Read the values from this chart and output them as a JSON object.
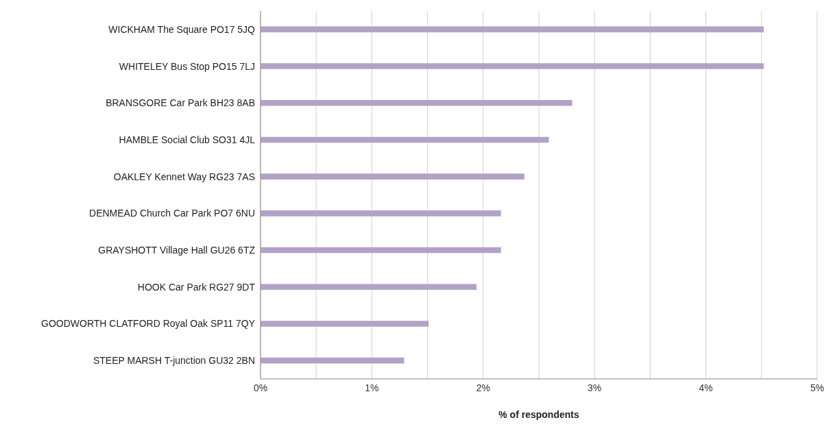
{
  "chart_data": {
    "type": "bar",
    "orientation": "horizontal",
    "xlabel": "% of respondents",
    "categories": [
      "WICKHAM The Square PO17 5JQ",
      "WHITELEY Bus Stop PO15 7LJ",
      "BRANSGORE Car Park BH23 8AB",
      "HAMBLE Social Club SO31 4JL",
      "OAKLEY Kennet Way RG23 7AS",
      "DENMEAD Church Car Park PO7 6NU",
      "GRAYSHOTT Village Hall GU26 6TZ",
      "HOOK Car Park RG27 9DT",
      "GOODWORTH CLATFORD Royal Oak SP11 7QY",
      "STEEP MARSH T-junction GU32 2BN"
    ],
    "values": [
      4.52,
      4.52,
      2.8,
      2.59,
      2.37,
      2.16,
      2.16,
      1.94,
      1.51,
      1.29
    ],
    "color": "#b3a2c7",
    "xlim": [
      0,
      5
    ],
    "xticks": [
      {
        "value": 0,
        "label": "0%"
      },
      {
        "value": 0.5,
        "label": null
      },
      {
        "value": 1,
        "label": "1%"
      },
      {
        "value": 1.5,
        "label": null
      },
      {
        "value": 2,
        "label": "2%"
      },
      {
        "value": 2.5,
        "label": null
      },
      {
        "value": 3,
        "label": "3%"
      },
      {
        "value": 3.5,
        "label": null
      },
      {
        "value": 4,
        "label": "4%"
      },
      {
        "value": 4.5,
        "label": null
      },
      {
        "value": 5,
        "label": "5%"
      }
    ],
    "grid": "x",
    "legend": false
  }
}
